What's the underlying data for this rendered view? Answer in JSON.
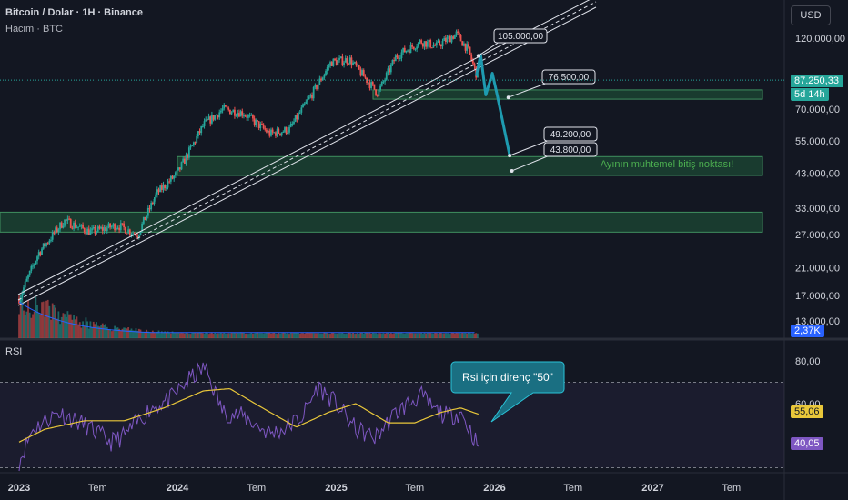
{
  "header": {
    "title": "Bitcoin / Dolar · 1H · Binance",
    "volume_label": "Hacim · BTC",
    "currency_button": "USD"
  },
  "rsi_panel": {
    "label": "RSI"
  },
  "price_labels": {
    "current_price": "87.250,33",
    "countdown": "5d 14h",
    "volume_value": "2,37K",
    "rsi_value": "40,05",
    "rsi_ma_value": "55,06"
  },
  "annotations": {
    "callouts": [
      "105.000,00",
      "76.500,00",
      "49.200,00",
      "43.800,00"
    ],
    "zone_note": "Ayının muhtemel bitiş noktası!",
    "rsi_note": "Rsi için direnç \"50\""
  },
  "colors": {
    "background": "#131722",
    "up": "#26a69a",
    "down": "#ef5350",
    "zone_fill": "#1f5a3a",
    "projection": "#1e9bb0",
    "rsi_line": "#7e57c2",
    "rsi_ma": "#e9c73a",
    "volume_ma": "#2962ff"
  },
  "chart_data": [
    {
      "type": "candlestick",
      "title": "Bitcoin / Dolar · 1H · Binance",
      "scale": "log",
      "y_axis_labels": [
        "120.000,00",
        "70.000,00",
        "55.000,00",
        "43.000,00",
        "33.000,00",
        "27.000,00",
        "21.000,00",
        "17.000,00",
        "13.000,00"
      ],
      "x_axis_labels": [
        "2023",
        "Tem",
        "2024",
        "Tem",
        "2025",
        "Tem",
        "2026",
        "Tem",
        "2027",
        "Tem"
      ],
      "close_path": {
        "date": [
          "2023-01-01",
          "2023-02-15",
          "2023-04-15",
          "2023-06-15",
          "2023-08-15",
          "2023-10-01",
          "2023-11-15",
          "2024-01-01",
          "2024-03-01",
          "2024-04-15",
          "2024-06-01",
          "2024-08-01",
          "2024-09-15",
          "2024-11-10",
          "2024-12-20",
          "2025-02-01",
          "2025-04-07",
          "2025-05-20",
          "2025-07-15",
          "2025-08-20",
          "2025-10-05",
          "2025-11-01",
          "2025-11-25"
        ],
        "close": [
          16600,
          23500,
          30000,
          27500,
          29000,
          27000,
          37000,
          43000,
          62000,
          70000,
          68000,
          58000,
          60000,
          80000,
          100000,
          102000,
          79000,
          105000,
          117000,
          113000,
          124000,
          110000,
          87250
        ]
      },
      "support_zones": [
        {
          "low": 75500,
          "high": 81000
        },
        {
          "low": 42300,
          "high": 48800
        },
        {
          "low": 27500,
          "high": 32000
        }
      ],
      "projection_path": {
        "date": [
          "2025-11-20",
          "2025-11-30",
          "2025-12-12",
          "2025-12-27",
          "2026-01-08",
          "2026-02-05"
        ],
        "price": [
          90000,
          106000,
          78000,
          92000,
          77000,
          49200
        ]
      },
      "current_price": 87250.33
    },
    {
      "type": "bar",
      "title": "Hacim · BTC",
      "last_value_label": "2,37K"
    },
    {
      "type": "line",
      "title": "RSI",
      "y_axis_labels": [
        "80,00",
        "60,00"
      ],
      "levels": [
        70,
        50,
        30
      ],
      "resistance_level": 50,
      "series": [
        {
          "name": "RSI",
          "date": [
            "2023-01-01",
            "2023-02-01",
            "2023-04-01",
            "2023-06-01",
            "2023-08-01",
            "2023-09-01",
            "2023-11-01",
            "2023-12-15",
            "2024-02-01",
            "2024-03-05",
            "2024-04-15",
            "2024-06-01",
            "2024-08-01",
            "2024-09-01",
            "2024-10-15",
            "2024-11-20",
            "2025-01-01",
            "2025-02-15",
            "2025-04-01",
            "2025-05-20",
            "2025-07-15",
            "2025-08-15",
            "2025-09-15",
            "2025-10-15",
            "2025-11-25"
          ],
          "values": [
            33,
            48,
            56,
            50,
            42,
            45,
            58,
            62,
            72,
            77,
            56,
            54,
            46,
            48,
            54,
            68,
            60,
            48,
            44,
            56,
            64,
            57,
            54,
            56,
            40.05
          ]
        },
        {
          "name": "RSI MA",
          "date": [
            "2023-01-01",
            "2023-03-01",
            "2023-06-01",
            "2023-09-01",
            "2023-12-01",
            "2024-03-01",
            "2024-05-01",
            "2024-07-15",
            "2024-10-01",
            "2024-12-15",
            "2025-02-15",
            "2025-05-01",
            "2025-07-01",
            "2025-09-01",
            "2025-10-15",
            "2025-11-25"
          ],
          "values": [
            42,
            48,
            52,
            52,
            58,
            66,
            67,
            58,
            49,
            56,
            60,
            51,
            51,
            56,
            58,
            55.06
          ]
        }
      ]
    }
  ]
}
